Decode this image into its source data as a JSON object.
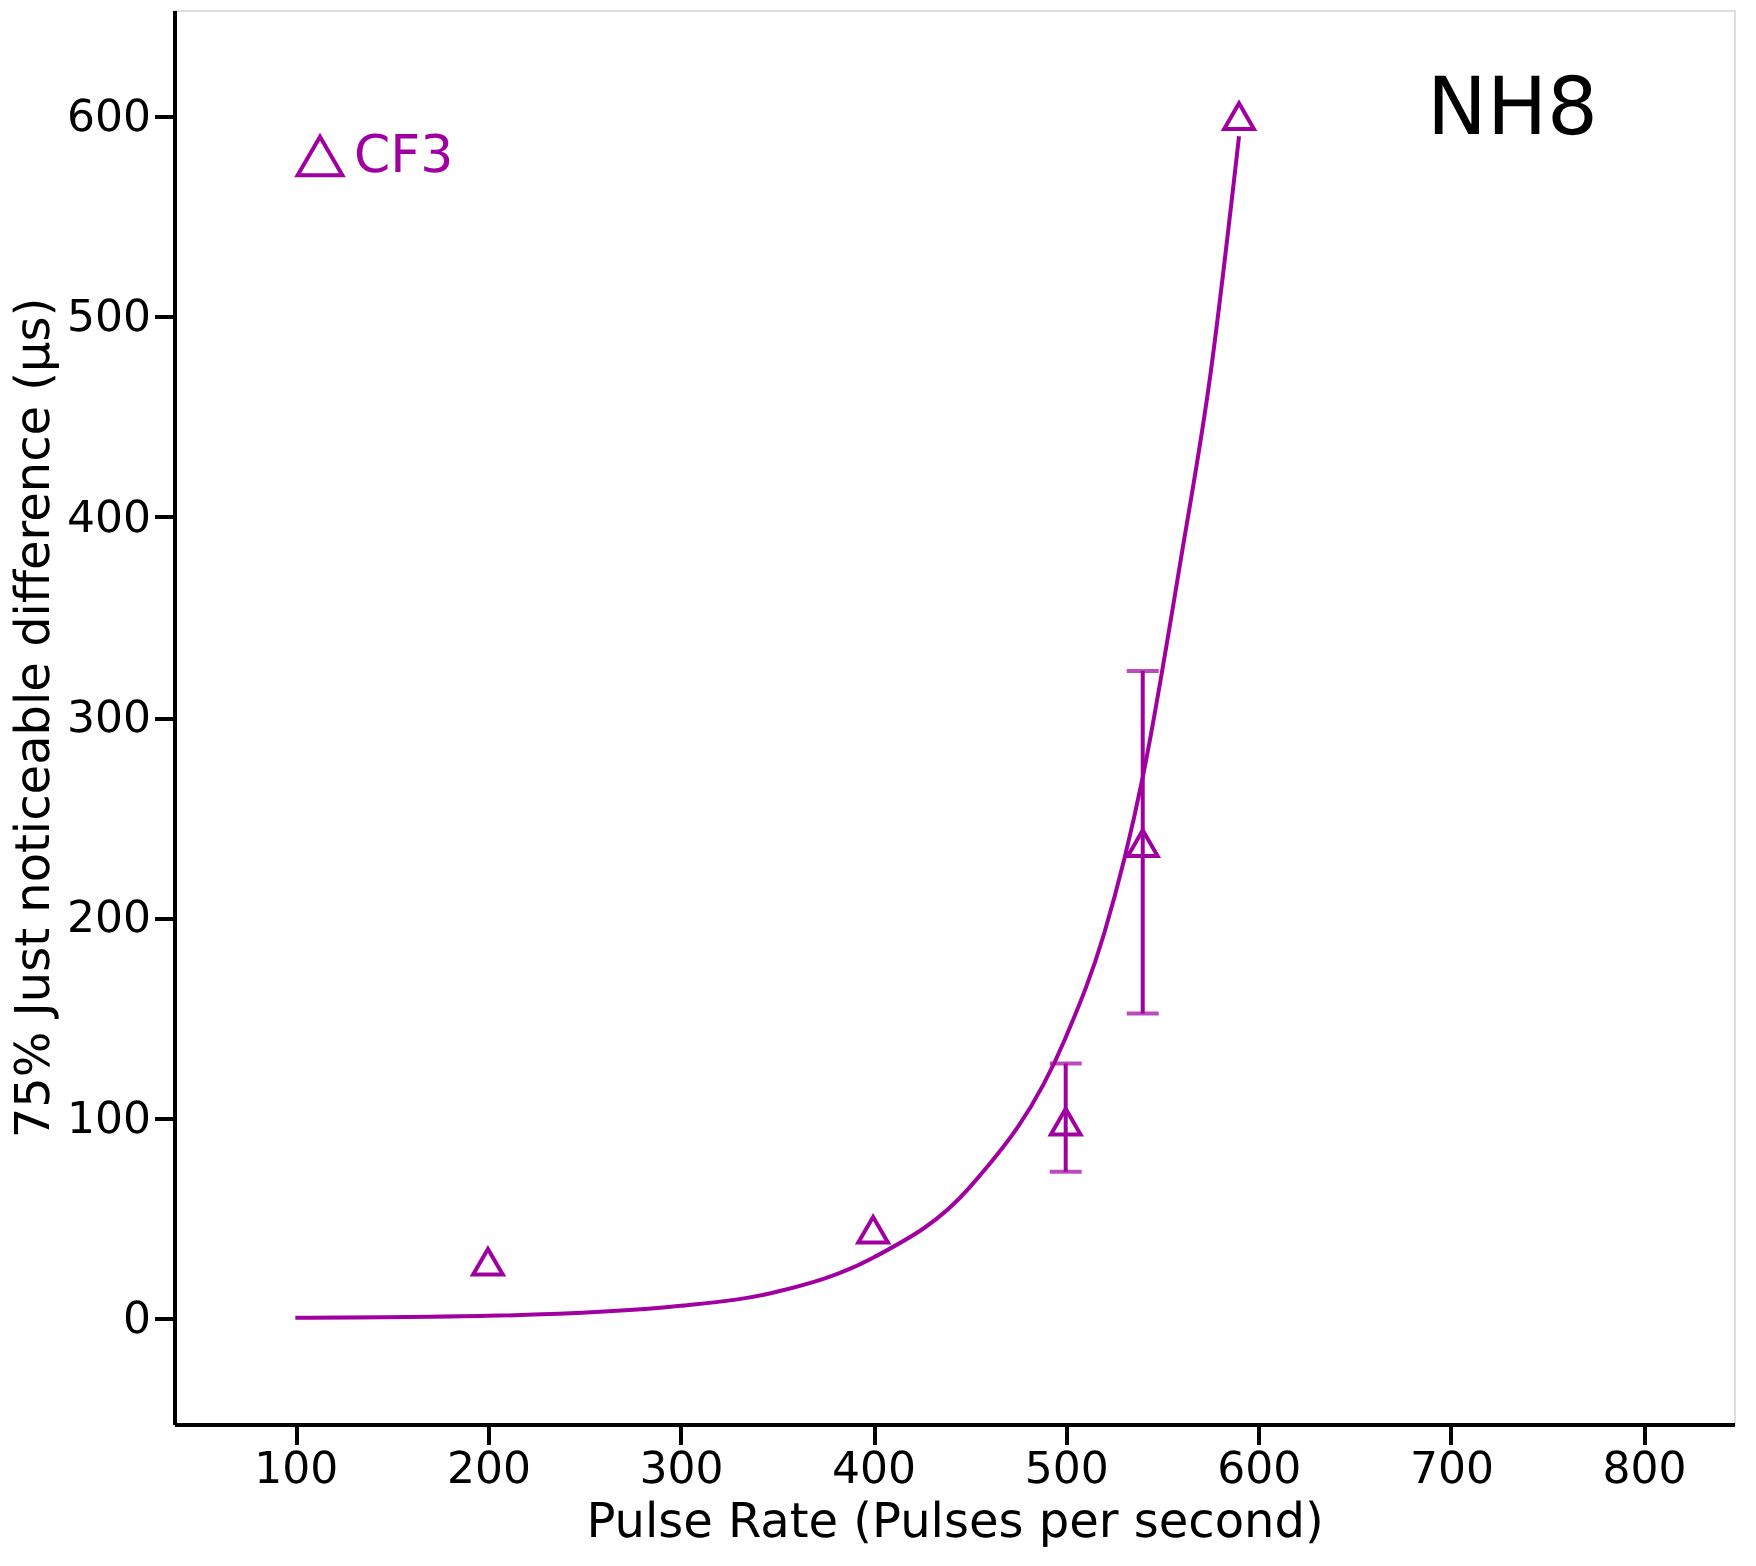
{
  "chart_data": {
    "type": "scatter",
    "xlabel": "Pulse Rate (Pulses per second)",
    "ylabel": "75% Just noticeable difference (μs)",
    "xlim": [
      37,
      847
    ],
    "ylim": [
      -53,
      653
    ],
    "xticks": [
      100,
      200,
      300,
      400,
      500,
      600,
      700,
      800
    ],
    "yticks": [
      0,
      100,
      200,
      300,
      400,
      500,
      600
    ],
    "series": [
      {
        "name": "CF3",
        "marker": "triangle",
        "color": "#a000a0",
        "x": [
          200,
          400,
          500,
          540,
          590
        ],
        "values": [
          28,
          44,
          98,
          237,
          600
        ],
        "errors": [
          null,
          null,
          [
            73,
            127
          ],
          [
            152,
            323
          ],
          null
        ]
      },
      {
        "type": "line",
        "marker": "none",
        "color": "#a000a0",
        "x": [
          100,
          200,
          300,
          350,
          400,
          450,
          500,
          520,
          540,
          560,
          575,
          590
        ],
        "values": [
          0,
          1,
          6,
          13,
          30,
          65,
          140,
          192,
          270,
          380,
          470,
          590
        ]
      }
    ],
    "line_style": "solid",
    "legend": "top left",
    "grid": false,
    "annotations": [
      "NH8"
    ]
  }
}
